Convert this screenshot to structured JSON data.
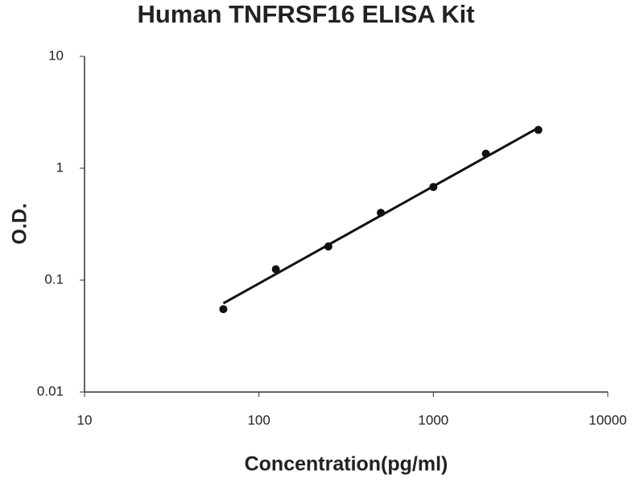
{
  "chart_data": {
    "type": "scatter",
    "title": "Human TNFRSF16 ELISA Kit",
    "x_label": "Concentration(pg/ml)",
    "y_label": "O.D.",
    "x": [
      62.5,
      125,
      250,
      500,
      1000,
      2000,
      4000
    ],
    "y": [
      0.055,
      0.125,
      0.2,
      0.4,
      0.68,
      1.35,
      2.2
    ],
    "color": "#111111",
    "trendline": {
      "x": [
        62.5,
        4000
      ],
      "y": [
        0.062,
        2.3
      ],
      "color": "#111111"
    },
    "xscale": "log",
    "yscale": "log",
    "xlim": [
      10,
      10000
    ],
    "ylim": [
      0.01,
      10
    ],
    "xticks": [
      10,
      100,
      1000,
      10000
    ],
    "yticks": [
      0.01,
      0.1,
      1,
      10
    ],
    "grid": false
  }
}
